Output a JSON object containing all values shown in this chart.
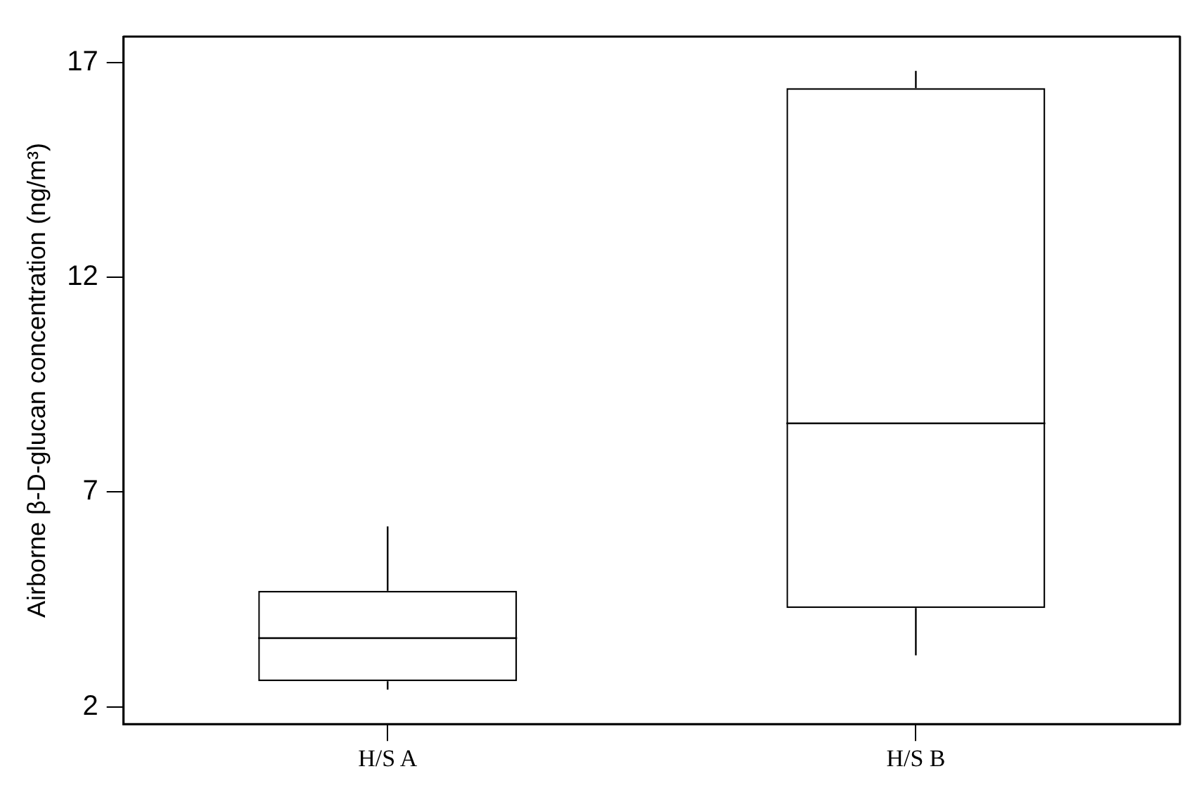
{
  "chart_data": {
    "type": "box",
    "ylabel": "Airborne β-D-glucan concentration (ng/m³)",
    "categories": [
      "H/S A",
      "H/S B"
    ],
    "boxes": [
      {
        "low": 2.4,
        "q1": 2.6,
        "median": 3.6,
        "q3": 4.7,
        "high": 6.2
      },
      {
        "low": 3.2,
        "q1": 4.3,
        "median": 8.6,
        "q3": 16.4,
        "high": 16.8
      }
    ],
    "color": "#000000",
    "ylim": [
      1.6,
      17.6
    ],
    "yticks": [
      2,
      7,
      12,
      17
    ],
    "grid": false,
    "legend": false
  }
}
